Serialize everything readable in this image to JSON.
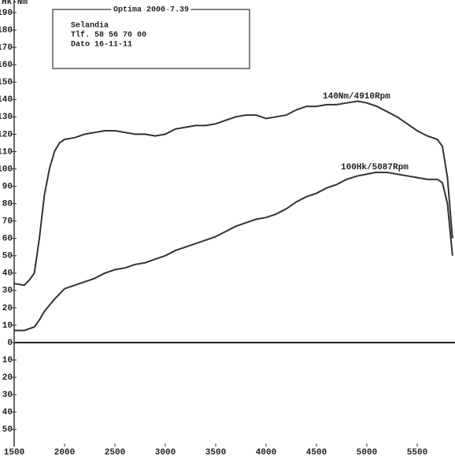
{
  "chart_data": {
    "type": "line",
    "ylabel": "Hk-Nm",
    "header": {
      "title": "Optima 2000 7.39",
      "lines": [
        "Selandia",
        "Tlf. 58 56 70 00",
        "Dato 16-11-11"
      ]
    },
    "annotations": [
      "140Nm/4910Rpm",
      "100Hk/5087Rpm"
    ],
    "xlim": [
      1500,
      5875
    ],
    "ylim": [
      -60,
      195
    ],
    "xticks": [
      1500,
      2000,
      2500,
      3000,
      3500,
      4000,
      4500,
      5000,
      5500
    ],
    "yticks": [
      {
        "value": -50,
        "label": "50"
      },
      {
        "value": -40,
        "label": "40"
      },
      {
        "value": -30,
        "label": "30"
      },
      {
        "value": -20,
        "label": "20"
      },
      {
        "value": -10,
        "label": "10"
      },
      0,
      10,
      20,
      30,
      40,
      50,
      60,
      70,
      80,
      90,
      100,
      110,
      120,
      130,
      140,
      150,
      160,
      170,
      180,
      190
    ],
    "series": [
      {
        "color": "#333333",
        "x": [
          1500,
          1600,
          1650,
          1700,
          1750,
          1800,
          1850,
          1900,
          1950,
          2000,
          2100,
          2200,
          2300,
          2400,
          2500,
          2600,
          2700,
          2800,
          2900,
          3000,
          3100,
          3200,
          3300,
          3400,
          3500,
          3600,
          3700,
          3800,
          3900,
          4000,
          4100,
          4200,
          4300,
          4400,
          4500,
          4600,
          4700,
          4800,
          4910,
          5000,
          5100,
          5200,
          5300,
          5400,
          5500,
          5600,
          5700,
          5750,
          5800,
          5850
        ],
        "values": [
          34,
          33,
          36,
          40,
          60,
          85,
          100,
          110,
          115,
          117,
          118,
          120,
          121,
          122,
          122,
          121,
          120,
          120,
          119,
          120,
          123,
          124,
          125,
          125,
          126,
          128,
          130,
          131,
          131,
          129,
          130,
          131,
          134,
          136,
          136,
          137,
          137,
          138,
          139,
          138,
          136,
          133,
          130,
          126,
          122,
          119,
          117,
          113,
          95,
          60
        ]
      },
      {
        "color": "#333333",
        "x": [
          1500,
          1600,
          1700,
          1750,
          1800,
          1900,
          2000,
          2100,
          2200,
          2300,
          2400,
          2500,
          2600,
          2700,
          2800,
          2900,
          3000,
          3100,
          3200,
          3300,
          3400,
          3500,
          3600,
          3700,
          3800,
          3900,
          4000,
          4100,
          4200,
          4300,
          4400,
          4500,
          4600,
          4700,
          4800,
          4910,
          5000,
          5087,
          5200,
          5300,
          5400,
          5500,
          5600,
          5700,
          5750,
          5800,
          5850
        ],
        "values": [
          7,
          7,
          9,
          13,
          18,
          25,
          31,
          33,
          35,
          37,
          40,
          42,
          43,
          45,
          46,
          48,
          50,
          53,
          55,
          57,
          59,
          61,
          64,
          67,
          69,
          71,
          72,
          74,
          77,
          81,
          84,
          86,
          89,
          91,
          94,
          96,
          97,
          98,
          98,
          97,
          96,
          95,
          94,
          94,
          92,
          80,
          50
        ]
      }
    ]
  }
}
